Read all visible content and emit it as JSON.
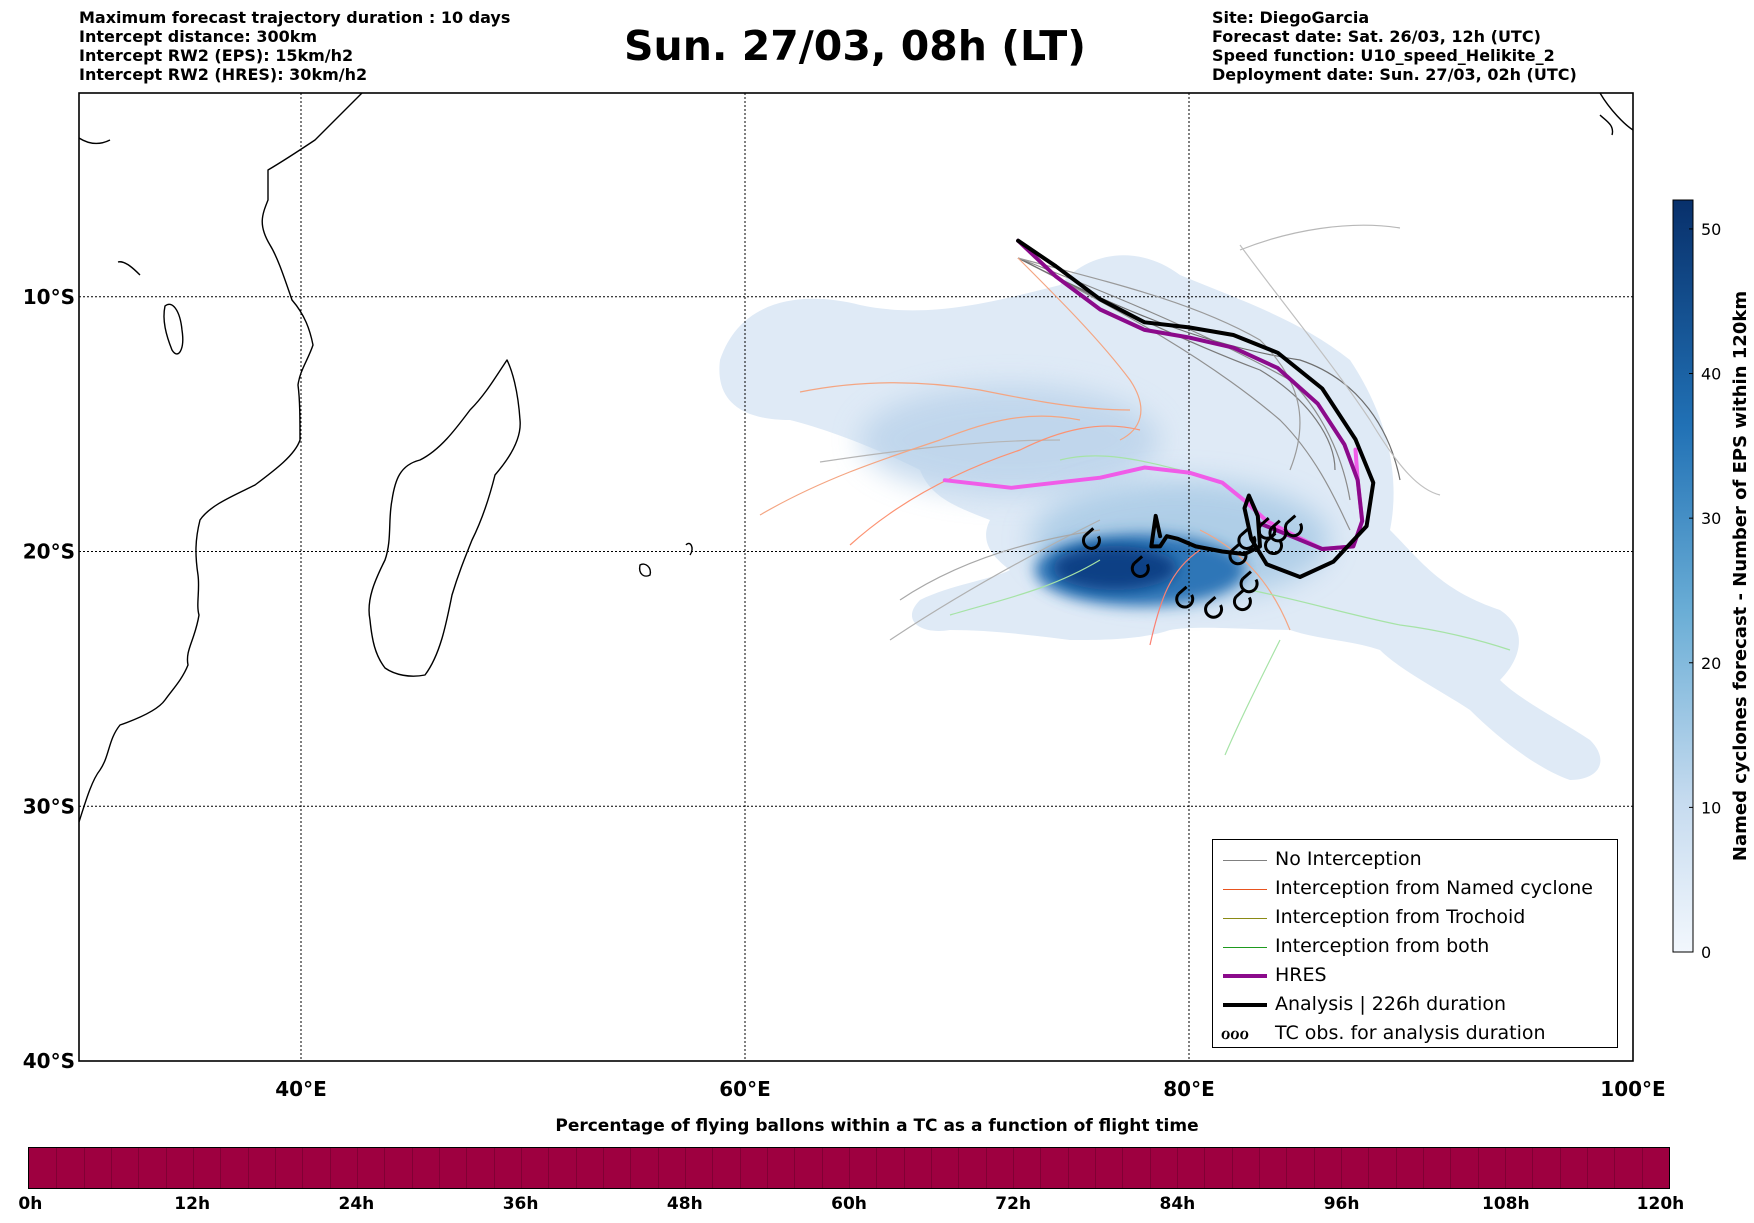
{
  "header_left": [
    "Maximum forecast trajectory duration : 10 days",
    "Intercept distance: 300km",
    "Intercept RW2 (EPS):  15km/h2",
    "Intercept RW2 (HRES): 30km/h2"
  ],
  "title": "Sun. 27/03, 08h (LT)",
  "header_right": [
    "Site: DiegoGarcia",
    "Forecast date: Sat. 26/03, 12h (UTC)",
    "Speed function: U10_speed_Helikite_2",
    "Deployment date: Sun. 27/03, 02h (UTC)"
  ],
  "map": {
    "lon_range": [
      30,
      100
    ],
    "lat_range": [
      -40,
      -2
    ],
    "lon_ticks": [
      {
        "value": 40,
        "label": "40°E"
      },
      {
        "value": 60,
        "label": "60°E"
      },
      {
        "value": 80,
        "label": "80°E"
      },
      {
        "value": 100,
        "label": "100°E"
      }
    ],
    "lat_ticks": [
      {
        "value": -10,
        "label": "10°S"
      },
      {
        "value": -20,
        "label": "20°S"
      },
      {
        "value": -30,
        "label": "30°S"
      },
      {
        "value": -40,
        "label": "40°S"
      }
    ],
    "grid": true
  },
  "colorbar": {
    "title": "Named cyclones forecast - Number of EPS within 120km",
    "min": 0,
    "max": 52,
    "ticks": [
      0,
      10,
      20,
      30,
      40,
      50
    ],
    "color_low": "#dfeaf6",
    "color_high": "#08306b"
  },
  "legend": [
    {
      "label": "No Interception",
      "color": "#808080",
      "width": 1.2
    },
    {
      "label": "Interception from Named cyclone",
      "color": "#e8531f",
      "width": 1.2
    },
    {
      "label": "Interception from Trochoid",
      "color": "#8a8a14",
      "width": 1.2
    },
    {
      "label": "Interception from both",
      "color": "#1e9a1e",
      "width": 1.2
    },
    {
      "label": "HRES",
      "color": "#8b0a8b",
      "width": 4
    },
    {
      "label": "Analysis | 226h duration",
      "color": "#000000",
      "width": 4
    },
    {
      "label": "TC obs. for analysis duration",
      "symbol": "ℴℴℴ"
    }
  ],
  "time_bar": {
    "title": "Percentage of flying ballons within a TC as a function of flight time",
    "color": "#9e0040",
    "ticks": [
      "0h",
      "12h",
      "24h",
      "36h",
      "48h",
      "60h",
      "72h",
      "84h",
      "96h",
      "108h",
      "120h"
    ]
  },
  "tracks": {
    "analysis": [
      [
        72.3,
        -7.8
      ],
      [
        74,
        -8.8
      ],
      [
        76,
        -10.1
      ],
      [
        78,
        -11
      ],
      [
        80,
        -11.2
      ],
      [
        82,
        -11.5
      ],
      [
        84,
        -12.2
      ],
      [
        86,
        -13.6
      ],
      [
        87.5,
        -15.6
      ],
      [
        88.3,
        -17.3
      ],
      [
        88.0,
        -19
      ],
      [
        86.5,
        -20.4
      ],
      [
        85,
        -21
      ],
      [
        83.5,
        -20.5
      ],
      [
        82.8,
        -19.5
      ],
      [
        82.5,
        -18.3
      ],
      [
        82.7,
        -17.8
      ],
      [
        83.1,
        -18.6
      ],
      [
        83.2,
        -19.8
      ],
      [
        82.5,
        -20.1
      ],
      [
        81.5,
        -20
      ],
      [
        80.3,
        -19.8
      ],
      [
        79.5,
        -19.5
      ],
      [
        79,
        -19.4
      ],
      [
        78.7,
        -19.8
      ],
      [
        78.3,
        -19.8
      ],
      [
        78.5,
        -18.6
      ],
      [
        78.7,
        -19.4
      ]
    ],
    "hres": [
      [
        72.3,
        -7.8
      ],
      [
        74,
        -9.2
      ],
      [
        76,
        -10.5
      ],
      [
        78,
        -11.3
      ],
      [
        80,
        -11.6
      ],
      [
        82,
        -12
      ],
      [
        84,
        -12.8
      ],
      [
        85.8,
        -14.2
      ],
      [
        87,
        -15.8
      ],
      [
        87.6,
        -17.2
      ],
      [
        87.8,
        -18.8
      ],
      [
        87.4,
        -19.8
      ],
      [
        86,
        -19.9
      ],
      [
        84.6,
        -19.4
      ],
      [
        83.2,
        -18.9
      ]
    ],
    "hres_pink": [
      [
        69,
        -17.2
      ],
      [
        72,
        -17.5
      ],
      [
        74,
        -17.3
      ],
      [
        76,
        -17.1
      ],
      [
        78,
        -16.7
      ],
      [
        80,
        -16.9
      ],
      [
        81.5,
        -17.3
      ],
      [
        82.5,
        -18
      ],
      [
        83.5,
        -18.8
      ],
      [
        84.8,
        -19.4
      ],
      [
        86,
        -19.9
      ],
      [
        87.4,
        -19.8
      ],
      [
        87.8,
        -18.8
      ],
      [
        87.6,
        -17.2
      ],
      [
        87.5,
        -16
      ]
    ],
    "tc_obs": [
      [
        75.6,
        -19.6
      ],
      [
        77.8,
        -20.7
      ],
      [
        79.8,
        -21.9
      ],
      [
        81.1,
        -22.3
      ],
      [
        82.4,
        -22
      ],
      [
        82.7,
        -21.3
      ],
      [
        82.2,
        -20.2
      ],
      [
        82.6,
        -19.6
      ],
      [
        83.5,
        -19.2
      ],
      [
        84,
        -19.3
      ],
      [
        84.7,
        -19.1
      ],
      [
        83.8,
        -19.8
      ]
    ]
  }
}
